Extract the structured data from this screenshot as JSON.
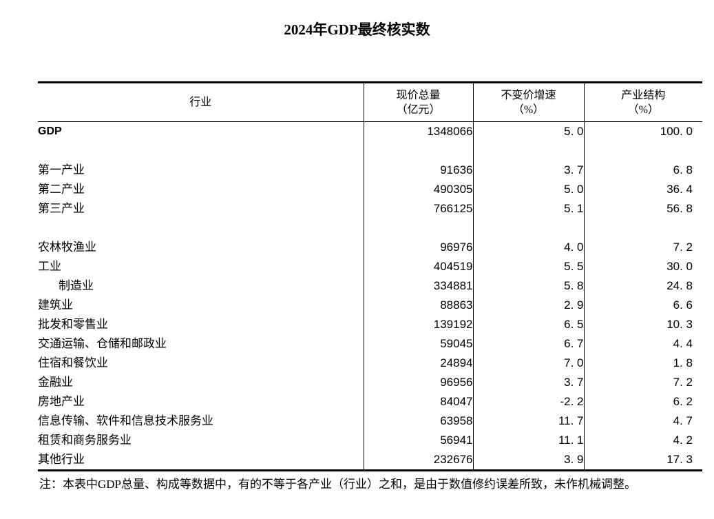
{
  "title": "2024年GDP最终核实数",
  "table": {
    "headers": {
      "industry": "行业",
      "total": {
        "line1": "现价总量",
        "line2": "（亿元）"
      },
      "growth": {
        "line1": "不变价增速",
        "line2": "（%）"
      },
      "share": {
        "line1": "产业结构",
        "line2": "（%）"
      }
    },
    "rows": [
      {
        "label": "GDP",
        "total": "1348066",
        "growth": "5. 0",
        "share": "100. 0",
        "latin": true
      },
      {
        "blank": true
      },
      {
        "label": "第一产业",
        "total": "91636",
        "growth": "3. 7",
        "share": "6. 8"
      },
      {
        "label": "第二产业",
        "total": "490305",
        "growth": "5. 0",
        "share": "36. 4"
      },
      {
        "label": "第三产业",
        "total": "766125",
        "growth": "5. 1",
        "share": "56. 8"
      },
      {
        "blank": true
      },
      {
        "label": "农林牧渔业",
        "total": "96976",
        "growth": "4. 0",
        "share": "7. 2"
      },
      {
        "label": "工业",
        "total": "404519",
        "growth": "5. 5",
        "share": "30. 0"
      },
      {
        "label": "制造业",
        "total": "334881",
        "growth": "5. 8",
        "share": "24. 8",
        "indent": true
      },
      {
        "label": "建筑业",
        "total": "88863",
        "growth": "2. 9",
        "share": "6. 6"
      },
      {
        "label": "批发和零售业",
        "total": "139192",
        "growth": "6. 5",
        "share": "10. 3"
      },
      {
        "label": "交通运输、仓储和邮政业",
        "total": "59045",
        "growth": "6. 7",
        "share": "4. 4"
      },
      {
        "label": "住宿和餐饮业",
        "total": "24894",
        "growth": "7. 0",
        "share": "1. 8"
      },
      {
        "label": "金融业",
        "total": "96956",
        "growth": "3. 7",
        "share": "7. 2"
      },
      {
        "label": "房地产业",
        "total": "84047",
        "growth": "-2. 2",
        "share": "6. 2"
      },
      {
        "label": "信息传输、软件和信息技术服务业",
        "total": "63958",
        "growth": "11. 7",
        "share": "4. 7"
      },
      {
        "label": "租赁和商务服务业",
        "total": "56941",
        "growth": "11. 1",
        "share": "4. 2"
      },
      {
        "label": "其他行业",
        "total": "232676",
        "growth": "3. 9",
        "share": "17. 3"
      }
    ]
  },
  "note": "注：本表中GDP总量、构成等数据中，有的不等于各产业（行业）之和，是由于数值修约误差所致，未作机械调整。",
  "colors": {
    "text": "#000000",
    "background": "#ffffff",
    "border": "#000000"
  },
  "chart_data": {
    "type": "table",
    "title": "2024年GDP最终核实数",
    "columns": [
      "行业",
      "现价总量（亿元）",
      "不变价增速（%）",
      "产业结构（%）"
    ],
    "rows": [
      [
        "GDP",
        1348066,
        5.0,
        100.0
      ],
      [
        "第一产业",
        91636,
        3.7,
        6.8
      ],
      [
        "第二产业",
        490305,
        5.0,
        36.4
      ],
      [
        "第三产业",
        766125,
        5.1,
        56.8
      ],
      [
        "农林牧渔业",
        96976,
        4.0,
        7.2
      ],
      [
        "工业",
        404519,
        5.5,
        30.0
      ],
      [
        "制造业",
        334881,
        5.8,
        24.8
      ],
      [
        "建筑业",
        88863,
        2.9,
        6.6
      ],
      [
        "批发和零售业",
        139192,
        6.5,
        10.3
      ],
      [
        "交通运输、仓储和邮政业",
        59045,
        6.7,
        4.4
      ],
      [
        "住宿和餐饮业",
        24894,
        7.0,
        1.8
      ],
      [
        "金融业",
        96956,
        3.7,
        7.2
      ],
      [
        "房地产业",
        84047,
        -2.2,
        6.2
      ],
      [
        "信息传输、软件和信息技术服务业",
        63958,
        11.7,
        4.7
      ],
      [
        "租赁和商务服务业",
        56941,
        11.1,
        4.2
      ],
      [
        "其他行业",
        232676,
        3.9,
        17.3
      ]
    ],
    "footnote": "注：本表中GDP总量、构成等数据中，有的不等于各产业（行业）之和，是由于数值修约误差所致，未作机械调整。"
  }
}
